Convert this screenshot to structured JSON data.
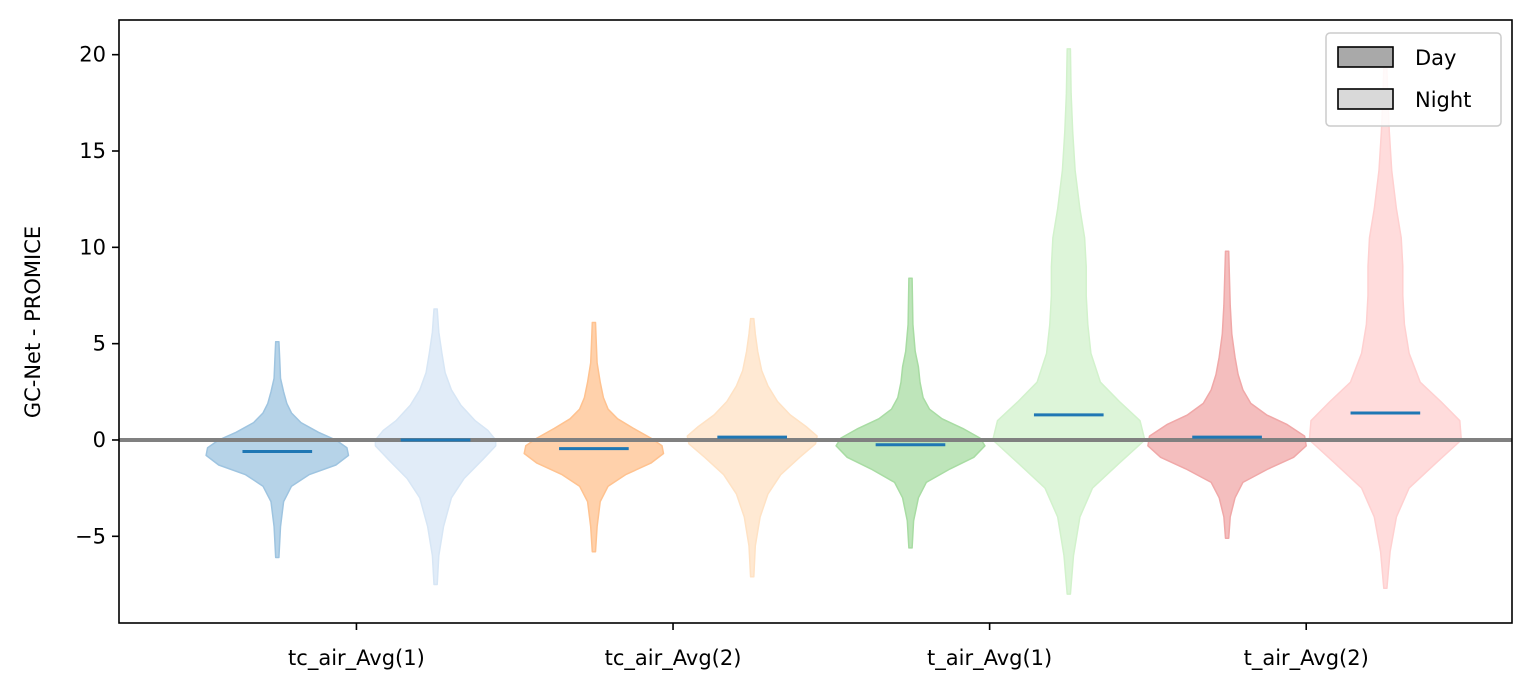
{
  "chart_data": {
    "type": "violin",
    "ylabel": "GC-Net - PROMICE",
    "ylim": [
      -9.5,
      21.8
    ],
    "yticks": [
      -5,
      0,
      5,
      10,
      15,
      20
    ],
    "ytick_labels": [
      "−5",
      "0",
      "5",
      "10",
      "15",
      "20"
    ],
    "xticks": [
      1.5,
      3.5,
      5.5,
      7.5
    ],
    "xtick_labels": [
      "tc_air_Avg(1)",
      "tc_air_Avg(2)",
      "t_air_Avg(1)",
      "t_air_Avg(2)"
    ],
    "xlim": [
      0.0,
      8.8
    ],
    "legend": {
      "location": "top-right",
      "entries": [
        {
          "label": "Day",
          "color": "#a9a9a9"
        },
        {
          "label": "Night",
          "color": "#d9d9d9"
        }
      ]
    },
    "zero_line": {
      "y": 0,
      "color": "#808080"
    },
    "median_color": "#1f77b4",
    "violins": [
      {
        "variable": "tc_air_Avg(1)",
        "period": "Day",
        "position": 1.0,
        "median": -0.6,
        "min": -6.1,
        "max": 5.1,
        "fill": "#9ec4e0",
        "fill_opacity": 0.75,
        "profile": [
          [
            -6.1,
            0.01
          ],
          [
            -4.5,
            0.02
          ],
          [
            -3.2,
            0.04
          ],
          [
            -2.4,
            0.09
          ],
          [
            -1.8,
            0.2
          ],
          [
            -1.3,
            0.37
          ],
          [
            -0.8,
            0.45
          ],
          [
            -0.4,
            0.44
          ],
          [
            0,
            0.37
          ],
          [
            0.4,
            0.26
          ],
          [
            0.9,
            0.15
          ],
          [
            1.4,
            0.09
          ],
          [
            1.9,
            0.06
          ],
          [
            2.5,
            0.04
          ],
          [
            3.2,
            0.02
          ],
          [
            4.2,
            0.015
          ],
          [
            5.1,
            0.01
          ]
        ]
      },
      {
        "variable": "tc_air_Avg(1)",
        "period": "Night",
        "position": 2.0,
        "median": 0.0,
        "min": -7.5,
        "max": 6.8,
        "fill": "#d7e6f5",
        "fill_opacity": 0.75,
        "profile": [
          [
            -7.5,
            0.01
          ],
          [
            -6.0,
            0.02
          ],
          [
            -4.5,
            0.05
          ],
          [
            -3.0,
            0.1
          ],
          [
            -2.0,
            0.18
          ],
          [
            -1.0,
            0.3
          ],
          [
            -0.3,
            0.38
          ],
          [
            0,
            0.38
          ],
          [
            0.5,
            0.33
          ],
          [
            1.0,
            0.25
          ],
          [
            1.8,
            0.16
          ],
          [
            2.6,
            0.1
          ],
          [
            3.5,
            0.06
          ],
          [
            4.5,
            0.04
          ],
          [
            5.6,
            0.02
          ],
          [
            6.8,
            0.01
          ]
        ]
      },
      {
        "variable": "tc_air_Avg(2)",
        "period": "Day",
        "position": 3.0,
        "median": -0.45,
        "min": -5.8,
        "max": 6.1,
        "fill": "#ffc28f",
        "fill_opacity": 0.75,
        "profile": [
          [
            -5.8,
            0.01
          ],
          [
            -4.5,
            0.02
          ],
          [
            -3.2,
            0.04
          ],
          [
            -2.4,
            0.09
          ],
          [
            -1.8,
            0.2
          ],
          [
            -1.2,
            0.36
          ],
          [
            -0.7,
            0.44
          ],
          [
            -0.3,
            0.43
          ],
          [
            0.1,
            0.36
          ],
          [
            0.6,
            0.25
          ],
          [
            1.1,
            0.15
          ],
          [
            1.6,
            0.09
          ],
          [
            2.2,
            0.06
          ],
          [
            3.0,
            0.04
          ],
          [
            4.0,
            0.02
          ],
          [
            5.0,
            0.015
          ],
          [
            6.1,
            0.01
          ]
        ]
      },
      {
        "variable": "tc_air_Avg(2)",
        "period": "Night",
        "position": 4.0,
        "median": 0.15,
        "min": -7.1,
        "max": 6.3,
        "fill": "#ffe2c4",
        "fill_opacity": 0.75,
        "profile": [
          [
            -7.1,
            0.01
          ],
          [
            -5.5,
            0.02
          ],
          [
            -4.0,
            0.05
          ],
          [
            -2.8,
            0.1
          ],
          [
            -1.8,
            0.18
          ],
          [
            -0.9,
            0.3
          ],
          [
            -0.2,
            0.4
          ],
          [
            0.2,
            0.41
          ],
          [
            0.7,
            0.34
          ],
          [
            1.3,
            0.24
          ],
          [
            2.0,
            0.16
          ],
          [
            2.8,
            0.1
          ],
          [
            3.6,
            0.06
          ],
          [
            4.6,
            0.035
          ],
          [
            5.5,
            0.02
          ],
          [
            6.3,
            0.01
          ]
        ]
      },
      {
        "variable": "t_air_Avg(1)",
        "period": "Day",
        "position": 5.0,
        "median": -0.25,
        "min": -5.6,
        "max": 8.4,
        "fill": "#a8dca3",
        "fill_opacity": 0.75,
        "profile": [
          [
            -5.6,
            0.01
          ],
          [
            -4.2,
            0.02
          ],
          [
            -3.0,
            0.05
          ],
          [
            -2.2,
            0.1
          ],
          [
            -1.5,
            0.25
          ],
          [
            -0.9,
            0.4
          ],
          [
            -0.3,
            0.47
          ],
          [
            0.1,
            0.44
          ],
          [
            0.6,
            0.33
          ],
          [
            1.1,
            0.2
          ],
          [
            1.6,
            0.12
          ],
          [
            2.2,
            0.08
          ],
          [
            3.0,
            0.06
          ],
          [
            3.8,
            0.05
          ],
          [
            4.6,
            0.03
          ],
          [
            6.0,
            0.015
          ],
          [
            8.4,
            0.01
          ]
        ]
      },
      {
        "variable": "t_air_Avg(1)",
        "period": "Night",
        "position": 6.0,
        "median": 1.3,
        "min": -8.0,
        "max": 20.3,
        "fill": "#d2f2cc",
        "fill_opacity": 0.75,
        "profile": [
          [
            -8.0,
            0.01
          ],
          [
            -6.0,
            0.03
          ],
          [
            -4.0,
            0.07
          ],
          [
            -2.5,
            0.15
          ],
          [
            -1.2,
            0.32
          ],
          [
            0,
            0.48
          ],
          [
            1.0,
            0.45
          ],
          [
            2.0,
            0.32
          ],
          [
            3.0,
            0.2
          ],
          [
            4.5,
            0.14
          ],
          [
            6.0,
            0.12
          ],
          [
            7.5,
            0.11
          ],
          [
            9.0,
            0.11
          ],
          [
            10.5,
            0.1
          ],
          [
            12.0,
            0.07
          ],
          [
            14.0,
            0.04
          ],
          [
            16.0,
            0.025
          ],
          [
            18.0,
            0.015
          ],
          [
            20.3,
            0.01
          ]
        ]
      },
      {
        "variable": "t_air_Avg(2)",
        "period": "Day",
        "position": 7.0,
        "median": 0.15,
        "min": -5.1,
        "max": 9.8,
        "fill": "#f0a8a8",
        "fill_opacity": 0.75,
        "profile": [
          [
            -5.1,
            0.01
          ],
          [
            -4.0,
            0.02
          ],
          [
            -3.0,
            0.05
          ],
          [
            -2.2,
            0.1
          ],
          [
            -1.5,
            0.26
          ],
          [
            -0.9,
            0.42
          ],
          [
            -0.3,
            0.5
          ],
          [
            0.2,
            0.49
          ],
          [
            0.8,
            0.38
          ],
          [
            1.3,
            0.25
          ],
          [
            1.9,
            0.15
          ],
          [
            2.6,
            0.1
          ],
          [
            3.4,
            0.07
          ],
          [
            4.3,
            0.05
          ],
          [
            5.5,
            0.03
          ],
          [
            7.0,
            0.02
          ],
          [
            9.8,
            0.01
          ]
        ]
      },
      {
        "variable": "t_air_Avg(2)",
        "period": "Night",
        "position": 8.0,
        "median": 1.4,
        "min": -7.7,
        "max": 19.3,
        "fill": "#ffd0d0",
        "fill_opacity": 0.75,
        "profile": [
          [
            -7.7,
            0.01
          ],
          [
            -5.8,
            0.03
          ],
          [
            -4.0,
            0.07
          ],
          [
            -2.5,
            0.15
          ],
          [
            -1.2,
            0.32
          ],
          [
            0,
            0.48
          ],
          [
            1.0,
            0.47
          ],
          [
            2.0,
            0.35
          ],
          [
            3.0,
            0.22
          ],
          [
            4.5,
            0.15
          ],
          [
            6.0,
            0.12
          ],
          [
            7.5,
            0.11
          ],
          [
            9.0,
            0.11
          ],
          [
            10.5,
            0.1
          ],
          [
            12.0,
            0.07
          ],
          [
            14.0,
            0.04
          ],
          [
            16.0,
            0.025
          ],
          [
            18.0,
            0.015
          ],
          [
            19.3,
            0.01
          ]
        ]
      }
    ]
  }
}
